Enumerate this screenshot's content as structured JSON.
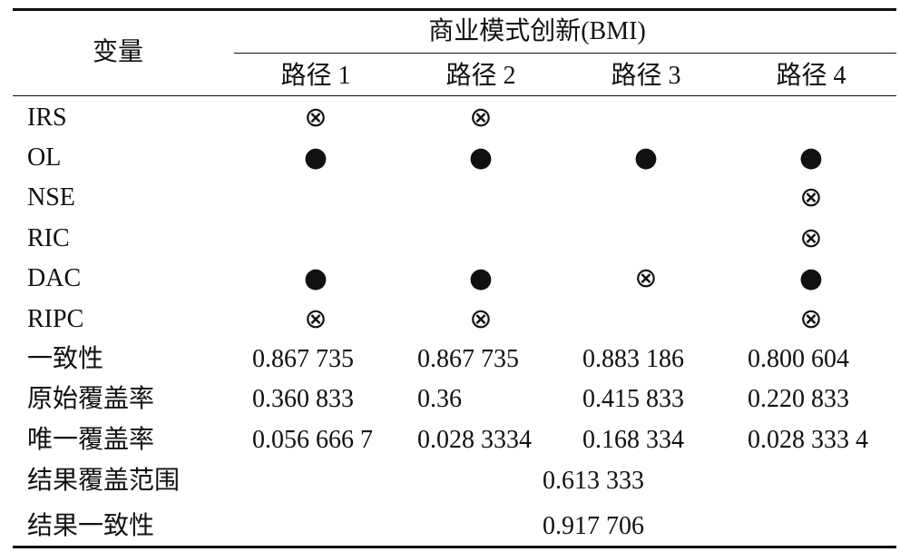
{
  "header": {
    "variable": "变量",
    "group": "商业模式创新(BMI)",
    "paths": [
      "路径 1",
      "路径 2",
      "路径 3",
      "路径 4"
    ]
  },
  "rows": [
    {
      "label": "IRS",
      "cells": [
        "⊗",
        "⊗",
        null,
        null
      ]
    },
    {
      "label": "OL",
      "cells": [
        "●",
        "●",
        "●",
        "●"
      ]
    },
    {
      "label": "NSE",
      "cells": [
        null,
        null,
        null,
        "⊗"
      ]
    },
    {
      "label": "RIC",
      "cells": [
        null,
        null,
        null,
        "⊗"
      ]
    },
    {
      "label": "DAC",
      "cells": [
        "●",
        "●",
        "⊗",
        "●"
      ]
    },
    {
      "label": "RIPC",
      "cells": [
        "⊗",
        "⊗",
        null,
        "⊗"
      ]
    },
    {
      "label": "一致性",
      "cells": [
        "0.867 735",
        "0.867 735",
        "0.883 186",
        "0.800 604"
      ]
    },
    {
      "label": "原始覆盖率",
      "cells": [
        "0.360 833",
        "0.36",
        "0.415 833",
        "0.220 833"
      ]
    },
    {
      "label": "唯一覆盖率",
      "cells": [
        "0.056 666 7",
        "0.028 3334",
        "0.168 334",
        "0.028 333 4"
      ]
    }
  ],
  "summary": [
    {
      "label": "结果覆盖范围",
      "value": "0.613 333"
    },
    {
      "label": "结果一致性",
      "value": "0.917 706"
    }
  ]
}
